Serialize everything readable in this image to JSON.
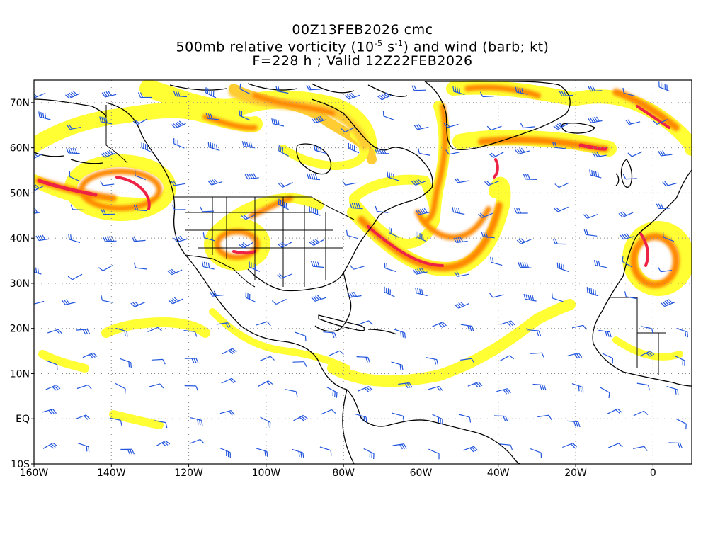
{
  "title": {
    "line1": "00Z13FEB2026 cmc",
    "line2_prefix": "500mb relative vorticity (10",
    "line2_exp1": "-5",
    "line2_mid": " s",
    "line2_exp2": "-1",
    "line2_suffix": ") and wind (barb; kt)",
    "line3": "F=228 h ; Valid 12Z22FEB2026"
  },
  "map": {
    "lon_range": [
      -160,
      10
    ],
    "lat_range": [
      -10,
      75
    ],
    "lon_ticks": [
      {
        "value": -160,
        "label": "160W"
      },
      {
        "value": -140,
        "label": "140W"
      },
      {
        "value": -120,
        "label": "120W"
      },
      {
        "value": -100,
        "label": "100W"
      },
      {
        "value": -80,
        "label": "80W"
      },
      {
        "value": -60,
        "label": "60W"
      },
      {
        "value": -40,
        "label": "40W"
      },
      {
        "value": -20,
        "label": "20W"
      },
      {
        "value": 0,
        "label": "0"
      }
    ],
    "lat_ticks": [
      {
        "value": 70,
        "label": "70N"
      },
      {
        "value": 60,
        "label": "60N"
      },
      {
        "value": 50,
        "label": "50N"
      },
      {
        "value": 40,
        "label": "40N"
      },
      {
        "value": 30,
        "label": "30N"
      },
      {
        "value": 20,
        "label": "20N"
      },
      {
        "value": 10,
        "label": "10N"
      },
      {
        "value": 0,
        "label": "EQ"
      },
      {
        "value": -10,
        "label": "10S"
      }
    ],
    "colors": {
      "vort_low": "#ffff33",
      "vort_mid": "#ffcc33",
      "vort_high": "#ff8800",
      "vort_peak": "#ee2244",
      "barb": "#2255dd",
      "coast": "#000000",
      "grid": "#888888"
    }
  }
}
